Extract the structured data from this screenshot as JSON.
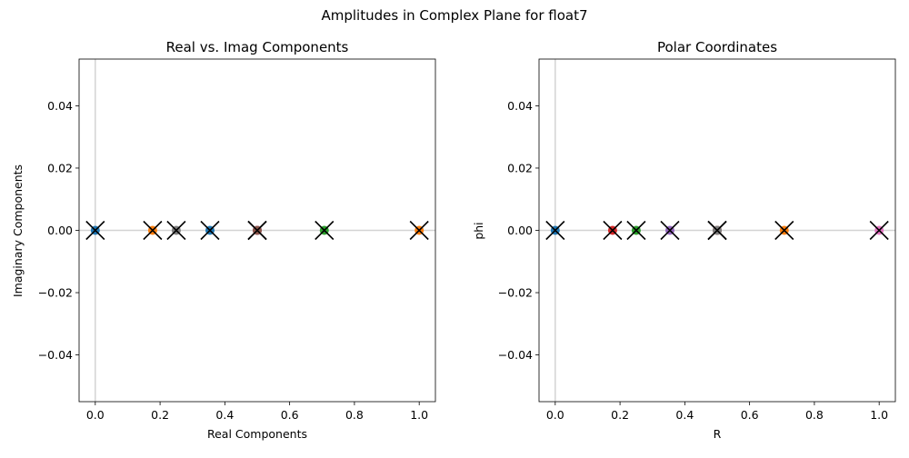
{
  "figure": {
    "suptitle": "Amplitudes in Complex Plane for float7"
  },
  "chart_data": [
    {
      "type": "scatter",
      "title": "Real vs. Imag Components",
      "xlabel": "Real Components",
      "ylabel": "Imaginary Components",
      "xlim": [
        -0.05,
        1.05
      ],
      "ylim": [
        -0.055,
        0.055
      ],
      "xticks": [
        "0.0",
        "0.2",
        "0.4",
        "0.6",
        "0.8",
        "1.0"
      ],
      "yticks": [
        "−0.04",
        "−0.02",
        "0.00",
        "0.02",
        "0.04"
      ],
      "grid": false,
      "reference_lines": {
        "x": 0,
        "y": 0,
        "color": "#d3d3d3"
      },
      "marker_overlay": "black x",
      "points": [
        {
          "x": 0.0,
          "y": 0.0,
          "color": "#1f77b4"
        },
        {
          "x": 0.177,
          "y": 0.0,
          "color": "#ff7f0e"
        },
        {
          "x": 0.25,
          "y": 0.0,
          "color": "#7f7f7f"
        },
        {
          "x": 0.354,
          "y": 0.0,
          "color": "#1f77b4"
        },
        {
          "x": 0.5,
          "y": 0.0,
          "color": "#d62728"
        },
        {
          "x": 0.5,
          "y": 0.0,
          "color": "#9467bd"
        },
        {
          "x": 0.5,
          "y": 0.0,
          "color": "#8c564b"
        },
        {
          "x": 0.707,
          "y": 0.0,
          "color": "#2ca02c"
        },
        {
          "x": 1.0,
          "y": 0.0,
          "color": "#ff7f0e"
        }
      ]
    },
    {
      "type": "scatter",
      "title": "Polar Coordinates",
      "xlabel": "R",
      "ylabel": "phi",
      "xlim": [
        -0.05,
        1.05
      ],
      "ylim": [
        -0.055,
        0.055
      ],
      "xticks": [
        "0.0",
        "0.2",
        "0.4",
        "0.6",
        "0.8",
        "1.0"
      ],
      "yticks": [
        "−0.04",
        "−0.02",
        "0.00",
        "0.02",
        "0.04"
      ],
      "grid": false,
      "reference_lines": {
        "x": 0,
        "y": 0,
        "color": "#d3d3d3"
      },
      "marker_overlay": "black x",
      "points": [
        {
          "x": 0.0,
          "y": 0.0,
          "color": "#1f77b4"
        },
        {
          "x": 0.177,
          "y": 0.0,
          "color": "#d62728"
        },
        {
          "x": 0.25,
          "y": 0.0,
          "color": "#2ca02c"
        },
        {
          "x": 0.354,
          "y": 0.0,
          "color": "#9467bd"
        },
        {
          "x": 0.5,
          "y": 0.0,
          "color": "#d62728"
        },
        {
          "x": 0.5,
          "y": 0.0,
          "color": "#8c564b"
        },
        {
          "x": 0.5,
          "y": 0.0,
          "color": "#7f7f7f"
        },
        {
          "x": 0.707,
          "y": 0.0,
          "color": "#ff7f0e"
        },
        {
          "x": 1.0,
          "y": 0.0,
          "color": "#e377c2"
        }
      ]
    }
  ]
}
